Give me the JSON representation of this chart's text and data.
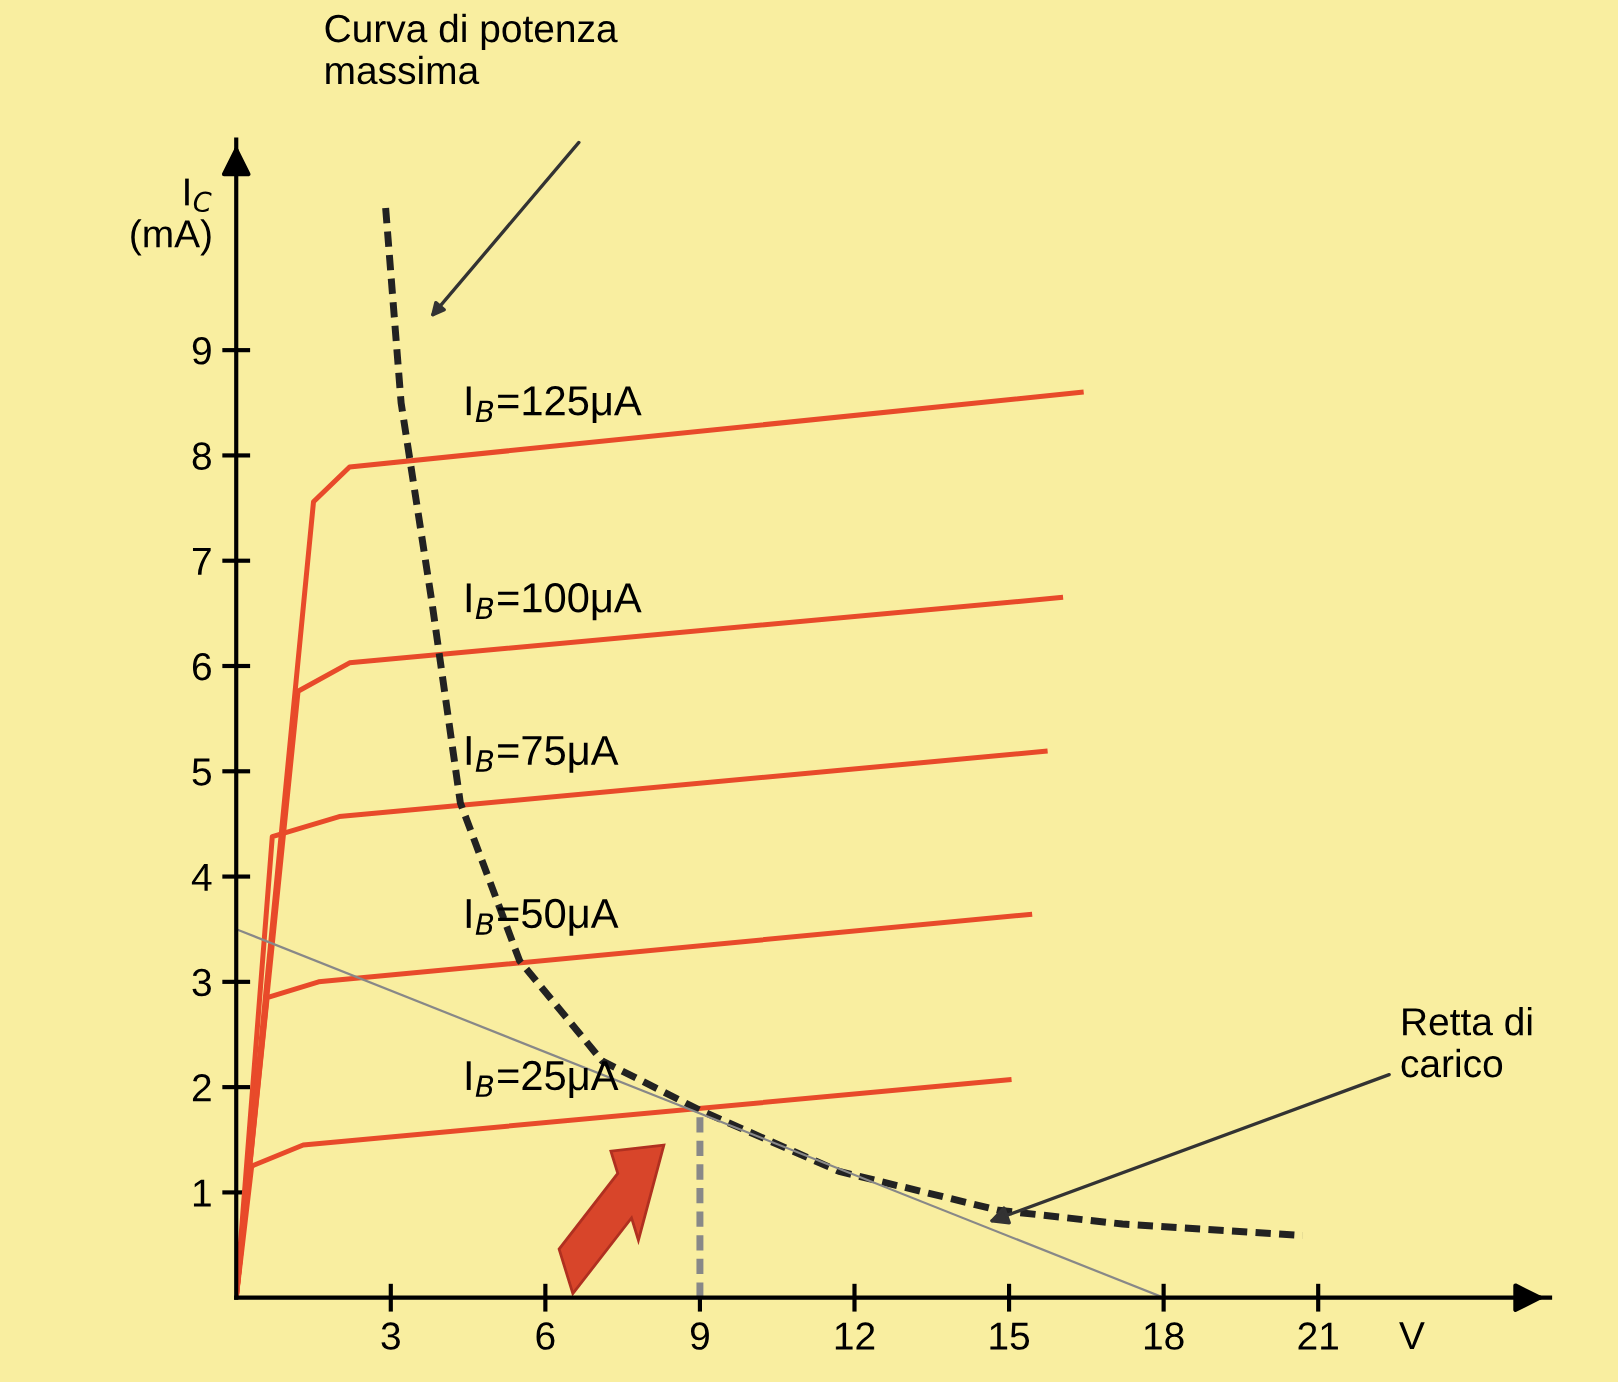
{
  "chart_data": {
    "type": "line",
    "xlabel": "V",
    "ylabel": "I$_{C}$\n(mA)",
    "xlim": [
      0,
      25.5
    ],
    "ylim": [
      0,
      11
    ],
    "xticks": [
      3,
      6,
      9,
      12,
      15,
      18,
      21
    ],
    "yticks": [
      1,
      2,
      3,
      4,
      5,
      6,
      7,
      8,
      9
    ],
    "grid": false,
    "legend": false,
    "marker": "none",
    "series": [
      {
        "name": "I$_{B}$=25μA",
        "color": "#e84a2a",
        "x": [
          0,
          0.3,
          1.3,
          15
        ],
        "values": [
          0,
          1.25,
          1.45,
          2.07
        ]
      },
      {
        "name": "I$_{B}$=50μA",
        "color": "#e84a2a",
        "x": [
          0,
          0.6,
          1.6,
          15.4
        ],
        "values": [
          0,
          2.85,
          3.0,
          3.64
        ]
      },
      {
        "name": "I$_{B}$=75μA",
        "color": "#e84a2a",
        "x": [
          0,
          0.7,
          2,
          15.7
        ],
        "values": [
          0,
          4.38,
          4.57,
          5.19
        ]
      },
      {
        "name": "I$_{B}$=100μA",
        "color": "#e84a2a",
        "x": [
          0,
          1.2,
          2.2,
          16
        ],
        "values": [
          0,
          5.76,
          6.03,
          6.65
        ]
      },
      {
        "name": "I$_{B}$=125μA",
        "color": "#e84a2a",
        "x": [
          0,
          1.5,
          2.2,
          16.4
        ],
        "values": [
          0,
          7.56,
          7.89,
          8.6
        ]
      },
      {
        "color": "#222222",
        "line_style": "dashed",
        "x": [
          2.9,
          3.2,
          3.8,
          4.35,
          5.5,
          7.1,
          9,
          11.7,
          14.8,
          17.2,
          20.7
        ],
        "values": [
          10.35,
          8.5,
          6.6,
          4.7,
          3.2,
          2.25,
          1.78,
          1.2,
          0.83,
          0.7,
          0.59
        ]
      },
      {
        "color": "#888888",
        "x": [
          0,
          18
        ],
        "values": [
          3.5,
          0
        ]
      },
      {
        "color": "#888888",
        "line_style": "dashed",
        "x": [
          9,
          9
        ],
        "values": [
          0,
          1.78
        ]
      }
    ],
    "annotations": [
      "Curva di potenza\nmassima",
      {
        "text": "Retta di\ncarico",
        "x": 14.5,
        "y": 0.7
      }
    ]
  }
}
